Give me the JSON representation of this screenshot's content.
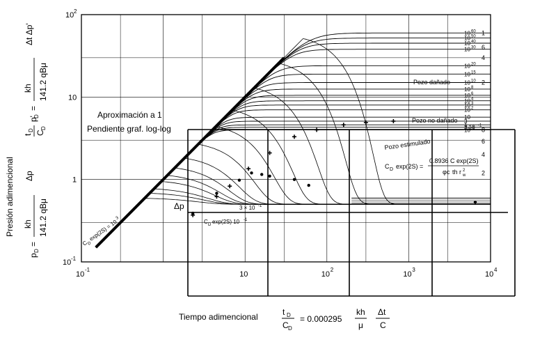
{
  "chart_data": {
    "type": "line",
    "xscale": "log",
    "yscale": "log",
    "xlim": [
      0.1,
      10000
    ],
    "ylim": [
      0.1,
      100
    ],
    "grid": true,
    "x_ticks": [
      {
        "value": 0.1,
        "base": "10",
        "exp": "-1"
      },
      {
        "value": 10,
        "base": "10",
        "exp": ""
      },
      {
        "value": 100,
        "base": "10",
        "exp": "2"
      },
      {
        "value": 1000,
        "base": "10",
        "exp": "3"
      },
      {
        "value": 10000,
        "base": "10",
        "exp": "4"
      }
    ],
    "y_ticks": [
      {
        "value": 100,
        "base": "10",
        "exp": "2"
      },
      {
        "value": 10,
        "base": "10",
        "exp": ""
      },
      {
        "value": 1,
        "base": "1",
        "exp": ""
      },
      {
        "value": 0.1,
        "base": "10",
        "exp": "-1"
      }
    ],
    "xlabel": {
      "text": "Tiempo adimencional",
      "t_num": "t",
      "t_sub": "D",
      "c_den": "C",
      "c_sub": "D",
      "eq": "= 0.000295",
      "kh": "kh",
      "mu": "μ",
      "dt": "Δt",
      "c": "C"
    },
    "ylabel": {
      "text": "Presión adimencional",
      "lower": {
        "pd": "p",
        "pd_sub": "D",
        "eq": "=",
        "kh": "kh",
        "den": "141.2 qBμ",
        "dp": "Δp"
      },
      "upper": {
        "t": "t",
        "t_sub": "D",
        "c": "C",
        "c_sub": "D",
        "p": "p'",
        "p_sub": "D",
        "eq": "=",
        "kh": "kh",
        "den": "141.2 qBμ",
        "dtp": "Δt  Δp'"
      }
    },
    "annotations": {
      "approx_line1": "Aproximación a 1",
      "approx_line2": "Pendiente graf. log-log",
      "pozo_danado": "Pozo dañado",
      "pozo_no_danado": "Pozo no dañado",
      "pozo_estimulado": "Pozo estimulado",
      "cd_formula_lhs": "C",
      "cd_formula_sub": "D",
      "cd_formula_exp": "exp(2S) =",
      "cd_formula_num": "0.8936 C exp(2S)",
      "cd_formula_den": "φc",
      "cd_formula_den2": "th",
      "cd_formula_den3": "r",
      "cd_formula_den_sub": "w",
      "cd_formula_den_exp": "2",
      "cd_label_bottom": "C",
      "cd_label_bottom_sub": "D",
      "cd_label_bottom_rest": "exp(2S) 10",
      "cd_label_bottom_exp": "-1",
      "cd_label_top": "C",
      "cd_label_top_sub": "D",
      "cd_label_top_rest": "exp(2S) = 10",
      "cd_label_top_exp": "3",
      "delta_p": "Δp",
      "three_x": "3 × 10",
      "three_x_exp": "-1"
    },
    "pressure_curves": [
      {
        "label": "10",
        "exp": "60",
        "plateau": 60
      },
      {
        "label": "10",
        "exp": "50",
        "plateau": 52
      },
      {
        "label": "10",
        "exp": "40",
        "plateau": 45
      },
      {
        "label": "10",
        "exp": "30",
        "plateau": 38
      },
      {
        "label": "10",
        "exp": "20",
        "plateau": 24
      },
      {
        "label": "10",
        "exp": "15",
        "plateau": 19
      },
      {
        "label": "10",
        "exp": "10",
        "plateau": 15
      },
      {
        "label": "10",
        "exp": "8",
        "plateau": 12.5
      },
      {
        "label": "10",
        "exp": "6",
        "plateau": 10.5
      },
      {
        "label": "10",
        "exp": "4",
        "plateau": 9
      },
      {
        "label": "10",
        "exp": "3",
        "plateau": 8
      },
      {
        "label": "10",
        "exp": "2",
        "plateau": 7
      },
      {
        "label": "10",
        "exp": "",
        "plateau": 5.7
      },
      {
        "label": "3",
        "exp": "",
        "plateau": 5.1
      },
      {
        "label": "1",
        "exp": "",
        "plateau": 4.6
      },
      {
        "label": "3.10",
        "exp": "-1",
        "plateau": 4.3
      },
      {
        "label": "10",
        "exp": "-1",
        "plateau": 4.0
      }
    ],
    "right_labels": [
      "1",
      "6",
      "4",
      "2",
      "8",
      "6",
      "4",
      "2"
    ],
    "derivative_levels": [
      0.5,
      0.52,
      0.55,
      0.58,
      0.6
    ],
    "data_points_pressure": [
      {
        "x": 2.3,
        "y": 0.37
      },
      {
        "x": 4.5,
        "y": 0.62
      },
      {
        "x": 6.5,
        "y": 0.83
      },
      {
        "x": 11,
        "y": 1.35
      },
      {
        "x": 20,
        "y": 2.1
      },
      {
        "x": 40,
        "y": 3.3
      },
      {
        "x": 75,
        "y": 4.0
      },
      {
        "x": 160,
        "y": 4.6
      },
      {
        "x": 300,
        "y": 4.9
      },
      {
        "x": 650,
        "y": 5.1
      }
    ],
    "data_points_derivative": [
      {
        "x": 2.3,
        "y": 0.39
      },
      {
        "x": 4.5,
        "y": 0.68
      },
      {
        "x": 8.5,
        "y": 0.98
      },
      {
        "x": 12,
        "y": 1.2
      },
      {
        "x": 16,
        "y": 1.15
      },
      {
        "x": 20,
        "y": 1.1
      },
      {
        "x": 40,
        "y": 1.0
      },
      {
        "x": 60,
        "y": 0.85
      },
      {
        "x": 6500,
        "y": 0.53
      }
    ]
  }
}
